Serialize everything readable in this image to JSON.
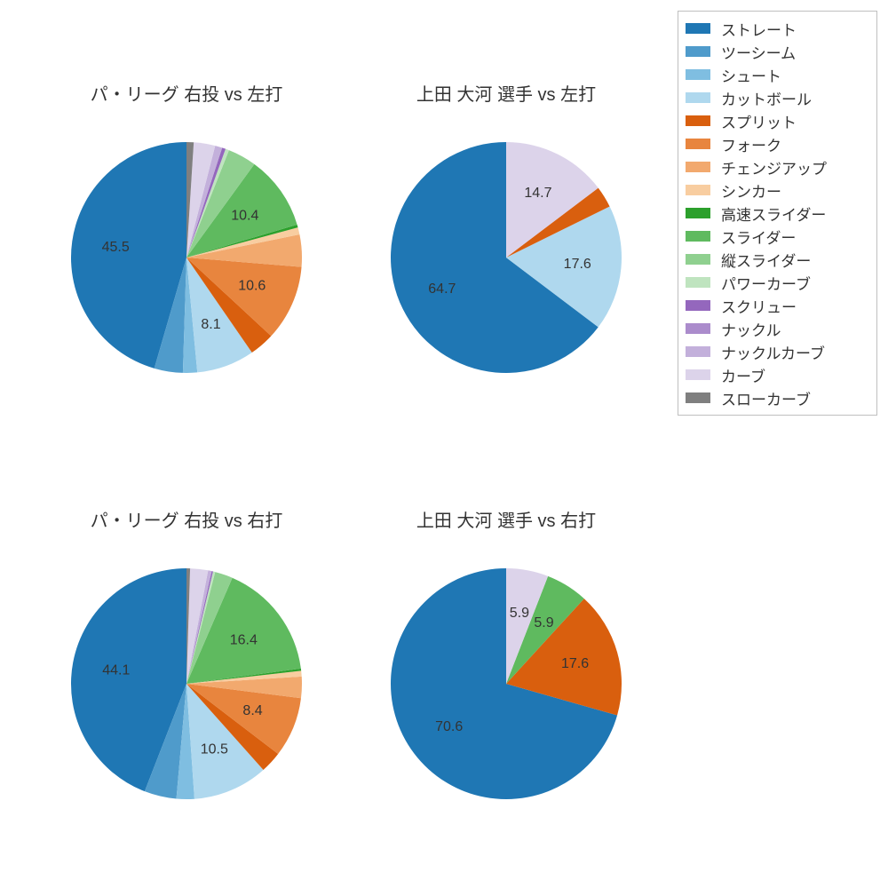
{
  "background_color": "#ffffff",
  "legend_border_color": "#bfbfbf",
  "title_fontsize": 20,
  "label_fontsize": 16,
  "legend_fontsize": 17,
  "start_angle_deg": 90,
  "direction": "counterclockwise",
  "label_min_value": 5.0,
  "categories": [
    {
      "key": "straight",
      "label": "ストレート",
      "color": "#1f77b4"
    },
    {
      "key": "twoseam",
      "label": "ツーシーム",
      "color": "#4f9bcb"
    },
    {
      "key": "shoot",
      "label": "シュート",
      "color": "#7fbee1"
    },
    {
      "key": "cutball",
      "label": "カットボール",
      "color": "#afd8ee"
    },
    {
      "key": "split",
      "label": "スプリット",
      "color": "#d95f0e"
    },
    {
      "key": "fork",
      "label": "フォーク",
      "color": "#e8853e"
    },
    {
      "key": "changeup",
      "label": "チェンジアップ",
      "color": "#f2a96e"
    },
    {
      "key": "sinker",
      "label": "シンカー",
      "color": "#f8cda0"
    },
    {
      "key": "hspeed_slider",
      "label": "高速スライダー",
      "color": "#2ca02c"
    },
    {
      "key": "slider",
      "label": "スライダー",
      "color": "#5fba5f"
    },
    {
      "key": "vslider",
      "label": "縦スライダー",
      "color": "#8fd08f"
    },
    {
      "key": "power_curve",
      "label": "パワーカーブ",
      "color": "#bfe4bf"
    },
    {
      "key": "screw",
      "label": "スクリュー",
      "color": "#9467bd"
    },
    {
      "key": "knuckle",
      "label": "ナックル",
      "color": "#ab8ccc"
    },
    {
      "key": "knuckle_curve",
      "label": "ナックルカーブ",
      "color": "#c3b0db"
    },
    {
      "key": "curve",
      "label": "カーブ",
      "color": "#dcd3ea"
    },
    {
      "key": "slow_curve",
      "label": "スローカーブ",
      "color": "#7f7f7f"
    }
  ],
  "charts": [
    {
      "id": "tl",
      "row": 0,
      "col": 0,
      "title": "パ・リーグ 右投 vs 左打",
      "slices": [
        {
          "cat": "straight",
          "value": 45.5
        },
        {
          "cat": "twoseam",
          "value": 4.0
        },
        {
          "cat": "shoot",
          "value": 2.0
        },
        {
          "cat": "cutball",
          "value": 8.1
        },
        {
          "cat": "split",
          "value": 3.5
        },
        {
          "cat": "fork",
          "value": 10.6
        },
        {
          "cat": "changeup",
          "value": 4.5
        },
        {
          "cat": "sinker",
          "value": 1.0
        },
        {
          "cat": "hspeed_slider",
          "value": 0.4
        },
        {
          "cat": "slider",
          "value": 10.4
        },
        {
          "cat": "vslider",
          "value": 4.0
        },
        {
          "cat": "power_curve",
          "value": 0.5
        },
        {
          "cat": "screw",
          "value": 0.5
        },
        {
          "cat": "knuckle_curve",
          "value": 1.0
        },
        {
          "cat": "curve",
          "value": 3.0
        },
        {
          "cat": "slow_curve",
          "value": 1.0
        }
      ]
    },
    {
      "id": "tr",
      "row": 0,
      "col": 1,
      "title": "上田 大河 選手 vs 左打",
      "slices": [
        {
          "cat": "straight",
          "value": 64.7
        },
        {
          "cat": "cutball",
          "value": 17.6
        },
        {
          "cat": "split",
          "value": 3.0
        },
        {
          "cat": "curve",
          "value": 14.7
        }
      ]
    },
    {
      "id": "bl",
      "row": 1,
      "col": 0,
      "title": "パ・リーグ 右投 vs 右打",
      "slices": [
        {
          "cat": "straight",
          "value": 44.1
        },
        {
          "cat": "twoseam",
          "value": 4.5
        },
        {
          "cat": "shoot",
          "value": 2.5
        },
        {
          "cat": "cutball",
          "value": 10.5
        },
        {
          "cat": "split",
          "value": 3.0
        },
        {
          "cat": "fork",
          "value": 8.4
        },
        {
          "cat": "changeup",
          "value": 3.0
        },
        {
          "cat": "sinker",
          "value": 0.8
        },
        {
          "cat": "hspeed_slider",
          "value": 0.3
        },
        {
          "cat": "slider",
          "value": 16.4
        },
        {
          "cat": "vslider",
          "value": 2.5
        },
        {
          "cat": "power_curve",
          "value": 0.3
        },
        {
          "cat": "screw",
          "value": 0.2
        },
        {
          "cat": "knuckle_curve",
          "value": 0.5
        },
        {
          "cat": "curve",
          "value": 2.5
        },
        {
          "cat": "slow_curve",
          "value": 0.5
        }
      ]
    },
    {
      "id": "br",
      "row": 1,
      "col": 1,
      "title": "上田 大河 選手 vs 右打",
      "slices": [
        {
          "cat": "straight",
          "value": 70.6
        },
        {
          "cat": "split",
          "value": 17.6
        },
        {
          "cat": "slider",
          "value": 5.9
        },
        {
          "cat": "curve",
          "value": 5.9
        }
      ]
    }
  ]
}
